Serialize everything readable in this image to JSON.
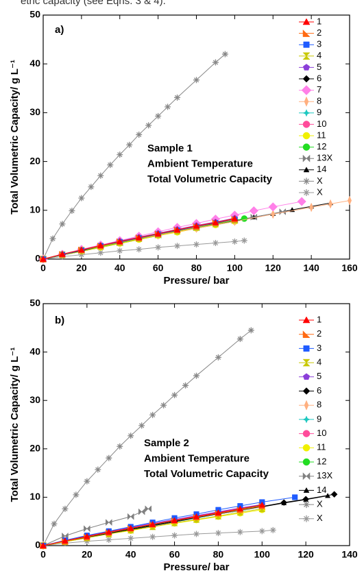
{
  "caption": "etric capacity (see Eqns. 3 & 4).",
  "chart_data": [
    {
      "type": "line",
      "panel_label": "a)",
      "annotations": [
        "Sample 1",
        "Ambient Temperature",
        "Total Volumetric Capacity"
      ],
      "xlabel": "Pressure/ bar",
      "ylabel": "Total Volumetric Capacity/ g L⁻¹",
      "xlim": [
        0,
        160
      ],
      "ylim": [
        0,
        50
      ],
      "xticks": [
        0,
        20,
        40,
        60,
        80,
        100,
        120,
        140,
        160
      ],
      "yticks": [
        0,
        10,
        20,
        30,
        40,
        50
      ],
      "series": [
        {
          "name": "1",
          "color": "#ff0000",
          "marker": "triangle",
          "x": [
            0,
            10,
            20,
            30,
            40,
            50,
            60,
            70,
            80,
            90,
            100
          ],
          "values": [
            0,
            1.0,
            1.9,
            2.8,
            3.6,
            4.4,
            5.2,
            6.0,
            6.8,
            7.5,
            8.3
          ]
        },
        {
          "name": "2",
          "color": "#ff6a13",
          "marker": "halftri",
          "x": [
            0,
            10,
            20,
            30,
            40,
            50,
            60,
            70,
            80,
            90,
            100
          ],
          "values": [
            0,
            1.0,
            1.9,
            2.7,
            3.6,
            4.4,
            5.2,
            6.0,
            6.7,
            7.5,
            8.2
          ]
        },
        {
          "name": "3",
          "color": "#1f5bff",
          "marker": "square",
          "x": [
            0,
            10,
            20,
            30,
            40,
            50,
            60,
            70,
            80,
            90,
            100
          ],
          "values": [
            0,
            0.9,
            1.8,
            2.7,
            3.5,
            4.3,
            5.1,
            5.9,
            6.6,
            7.4,
            8.1
          ]
        },
        {
          "name": "4",
          "color": "#c8c800",
          "marker": "hourglass",
          "x": [
            0,
            10,
            20,
            30,
            40,
            50,
            60,
            70,
            80,
            90,
            100
          ],
          "values": [
            0,
            0.9,
            1.8,
            2.6,
            3.4,
            4.2,
            5.0,
            5.7,
            6.5,
            7.2,
            8.0
          ]
        },
        {
          "name": "5",
          "color": "#8b3fd9",
          "marker": "pentagon",
          "x": [
            0,
            10,
            20,
            30,
            40,
            50,
            60,
            70,
            80,
            90,
            100
          ],
          "values": [
            0,
            1.0,
            1.9,
            2.8,
            3.7,
            4.5,
            5.3,
            6.1,
            6.9,
            7.6,
            8.4
          ]
        },
        {
          "name": "6",
          "color": "#000000",
          "marker": "diamond",
          "x": [
            0,
            10,
            20,
            30,
            40,
            50,
            60,
            70,
            80,
            90,
            100
          ],
          "values": [
            0,
            0.9,
            1.7,
            2.6,
            3.4,
            4.2,
            5.0,
            5.8,
            6.5,
            7.3,
            8.0
          ]
        },
        {
          "name": "7",
          "color": "#ff80e8",
          "marker": "bigdiamond",
          "x": [
            0,
            10,
            20,
            30,
            40,
            50,
            60,
            70,
            80,
            90,
            100,
            110,
            120,
            135
          ],
          "values": [
            0,
            1.0,
            2.0,
            2.9,
            3.8,
            4.7,
            5.6,
            6.5,
            7.3,
            8.2,
            9.0,
            9.9,
            10.7,
            11.8
          ]
        },
        {
          "name": "8",
          "color": "#ffb080",
          "marker": "thindiamond",
          "x": [
            0,
            20,
            40,
            60,
            80,
            100,
            120,
            140,
            150,
            160
          ],
          "values": [
            0,
            1.8,
            3.4,
            4.9,
            6.3,
            7.7,
            9.2,
            10.6,
            11.3,
            12.0
          ]
        },
        {
          "name": "9",
          "color": "#1ec8c0",
          "marker": "star",
          "x": [
            0,
            10,
            20,
            30,
            40,
            50,
            60,
            70,
            80,
            90,
            100
          ],
          "values": [
            0,
            0.9,
            1.8,
            2.7,
            3.5,
            4.3,
            5.1,
            5.9,
            6.6,
            7.4,
            8.1
          ]
        },
        {
          "name": "10",
          "color": "#ff4c9b",
          "marker": "circle",
          "x": [
            0,
            10,
            20,
            30,
            40,
            50,
            60,
            70,
            80,
            90,
            100
          ],
          "values": [
            0,
            1.0,
            1.9,
            2.8,
            3.6,
            4.4,
            5.2,
            6.0,
            6.7,
            7.5,
            8.2
          ]
        },
        {
          "name": "11",
          "color": "#f0f000",
          "marker": "circle",
          "x": [
            0,
            10,
            20,
            30,
            40,
            50,
            60,
            70,
            80,
            90,
            100
          ],
          "values": [
            0,
            0.8,
            1.6,
            2.4,
            3.2,
            4.0,
            4.8,
            5.5,
            6.3,
            7.0,
            7.7
          ]
        },
        {
          "name": "12",
          "color": "#22dd22",
          "marker": "circle",
          "x": [
            0,
            10,
            20,
            30,
            40,
            50,
            60,
            70,
            80,
            90,
            100,
            105
          ],
          "values": [
            0,
            0.8,
            1.7,
            2.5,
            3.3,
            4.1,
            4.9,
            5.7,
            6.4,
            7.2,
            7.9,
            8.3
          ]
        },
        {
          "name": "13X",
          "color": "#808080",
          "marker": "bowtie",
          "x": [
            0,
            20,
            40,
            60,
            80,
            100,
            110,
            125
          ],
          "values": [
            0,
            1.7,
            3.3,
            4.9,
            6.4,
            7.9,
            8.6,
            9.7
          ]
        },
        {
          "name": "14",
          "color": "#000000",
          "marker": "smalltri",
          "x": [
            0,
            20,
            40,
            60,
            80,
            100,
            110,
            120,
            130,
            140,
            150
          ],
          "values": [
            0,
            1.6,
            3.2,
            4.8,
            6.3,
            7.8,
            8.6,
            9.3,
            10.1,
            10.8,
            11.5
          ]
        },
        {
          "name": "X",
          "color": "#888888",
          "marker": "asterisk",
          "x": [
            0,
            5,
            10,
            15,
            20,
            25,
            30,
            35,
            40,
            45,
            50,
            55,
            60,
            65,
            70,
            80,
            90,
            95
          ],
          "values": [
            0,
            4.2,
            7.2,
            9.9,
            12.5,
            14.8,
            17.1,
            19.3,
            21.4,
            23.4,
            25.5,
            27.4,
            29.3,
            31.2,
            33.1,
            36.7,
            40.3,
            42.0
          ]
        },
        {
          "name": "X",
          "color": "#999999",
          "marker": "asterisk",
          "x": [
            0,
            10,
            20,
            30,
            40,
            50,
            60,
            70,
            80,
            90,
            100,
            105
          ],
          "values": [
            0,
            0.5,
            0.9,
            1.3,
            1.7,
            2.0,
            2.4,
            2.7,
            3.0,
            3.3,
            3.6,
            3.8
          ]
        }
      ]
    },
    {
      "type": "line",
      "panel_label": "b)",
      "annotations": [
        "Sample 2",
        "Ambient Temperature",
        "Total Volumetric Capacity"
      ],
      "xlabel": "Pressure/ bar",
      "ylabel": "Total Volumetric Capacity/ g L⁻¹",
      "xlim": [
        0,
        140
      ],
      "ylim": [
        0,
        50
      ],
      "xticks": [
        0,
        20,
        40,
        60,
        80,
        100,
        120,
        140
      ],
      "yticks": [
        0,
        10,
        20,
        30,
        40,
        50
      ],
      "series": [
        {
          "name": "1",
          "color": "#ff0000",
          "marker": "triangle",
          "x": [
            0,
            10,
            20,
            30,
            40,
            50,
            60,
            70,
            80,
            90,
            100
          ],
          "values": [
            0,
            1.0,
            1.9,
            2.8,
            3.6,
            4.4,
            5.2,
            6.0,
            6.8,
            7.6,
            8.4
          ]
        },
        {
          "name": "2",
          "color": "#ff6a13",
          "marker": "halftri",
          "x": [
            0,
            10,
            20,
            30,
            40,
            50,
            60,
            70,
            80,
            90,
            100
          ],
          "values": [
            0,
            0.9,
            1.8,
            2.7,
            3.6,
            4.4,
            5.2,
            5.9,
            6.7,
            7.4,
            8.2
          ]
        },
        {
          "name": "3",
          "color": "#1f5bff",
          "marker": "square",
          "x": [
            0,
            10,
            20,
            30,
            40,
            50,
            60,
            70,
            80,
            90,
            100,
            115
          ],
          "values": [
            0,
            1.1,
            2.1,
            3.0,
            3.9,
            4.8,
            5.7,
            6.5,
            7.4,
            8.2,
            9.0,
            10.0
          ]
        },
        {
          "name": "4",
          "color": "#c8c800",
          "marker": "hourglass",
          "x": [
            0,
            10,
            20,
            30,
            40,
            50,
            60,
            70,
            80,
            90,
            100
          ],
          "values": [
            0,
            0.8,
            1.6,
            2.4,
            3.2,
            3.9,
            4.7,
            5.4,
            6.1,
            6.9,
            7.6
          ]
        },
        {
          "name": "5",
          "color": "#8b3fd9",
          "marker": "pentagon",
          "x": [
            0,
            10,
            20,
            30,
            40,
            50,
            60,
            70,
            80,
            90,
            100
          ],
          "values": [
            0,
            1.0,
            2.0,
            2.9,
            3.8,
            4.6,
            5.4,
            6.2,
            7.0,
            7.8,
            8.5
          ]
        },
        {
          "name": "6",
          "color": "#000000",
          "marker": "diamond",
          "x": [
            0,
            20,
            40,
            60,
            80,
            100,
            110,
            120,
            133
          ],
          "values": [
            0,
            1.7,
            3.4,
            5.0,
            6.6,
            8.1,
            8.9,
            9.6,
            10.6
          ]
        },
        {
          "name": "8",
          "color": "#ffb080",
          "marker": "thindiamond",
          "x": [
            0,
            10,
            20,
            30,
            40,
            50,
            60,
            70,
            80,
            90,
            100
          ],
          "values": [
            0,
            0.9,
            1.7,
            2.6,
            3.4,
            4.2,
            5.0,
            5.8,
            6.5,
            7.3,
            8.0
          ]
        },
        {
          "name": "9",
          "color": "#1ec8c0",
          "marker": "star",
          "x": [
            0,
            10,
            20,
            30,
            40,
            50,
            60,
            70,
            80,
            90,
            100
          ],
          "values": [
            0,
            0.9,
            1.8,
            2.6,
            3.4,
            4.2,
            5.0,
            5.7,
            6.5,
            7.2,
            8.0
          ]
        },
        {
          "name": "10",
          "color": "#ff4c9b",
          "marker": "circle",
          "x": [
            0,
            10,
            20,
            30,
            40,
            50,
            60,
            70,
            80,
            90,
            100
          ],
          "values": [
            0,
            1.0,
            1.9,
            2.8,
            3.7,
            4.5,
            5.3,
            6.1,
            6.9,
            7.7,
            8.4
          ]
        },
        {
          "name": "11",
          "color": "#f0f000",
          "marker": "circle",
          "x": [
            0,
            10,
            20,
            30,
            40,
            50,
            60,
            70,
            80,
            90,
            100
          ],
          "values": [
            0,
            0.8,
            1.6,
            2.4,
            3.1,
            3.9,
            4.6,
            5.3,
            6.0,
            6.7,
            7.4
          ]
        },
        {
          "name": "12",
          "color": "#22dd22",
          "marker": "circle",
          "x": [
            0,
            10,
            20,
            30,
            40,
            50,
            60,
            70,
            80,
            90,
            100
          ],
          "values": [
            0,
            0.9,
            1.8,
            2.7,
            3.5,
            4.3,
            5.1,
            5.9,
            6.7,
            7.5,
            8.3
          ]
        },
        {
          "name": "13X",
          "color": "#808080",
          "marker": "bowtie",
          "x": [
            0,
            10,
            20,
            30,
            40,
            45,
            48
          ],
          "values": [
            0,
            2.0,
            3.5,
            4.8,
            6.0,
            7.0,
            7.6
          ]
        },
        {
          "name": "14",
          "color": "#000000",
          "marker": "smalltri",
          "x": [
            0,
            20,
            40,
            60,
            80,
            100,
            110,
            120,
            130
          ],
          "values": [
            0,
            1.7,
            3.3,
            4.9,
            6.5,
            8.0,
            8.8,
            9.5,
            10.3
          ]
        },
        {
          "name": "X",
          "color": "#888888",
          "marker": "asterisk",
          "x": [
            0,
            5,
            10,
            15,
            20,
            25,
            30,
            35,
            40,
            45,
            50,
            55,
            60,
            65,
            70,
            80,
            90,
            95
          ],
          "values": [
            0,
            4.5,
            7.6,
            10.5,
            13.3,
            15.7,
            18.1,
            20.5,
            22.7,
            24.8,
            27.0,
            29.0,
            31.1,
            33.1,
            35.1,
            38.9,
            42.7,
            44.5
          ]
        },
        {
          "name": "X",
          "color": "#999999",
          "marker": "asterisk",
          "x": [
            0,
            10,
            20,
            30,
            40,
            50,
            60,
            70,
            80,
            90,
            100,
            105
          ],
          "values": [
            0,
            0.5,
            0.9,
            1.2,
            1.5,
            1.8,
            2.1,
            2.4,
            2.6,
            2.8,
            3.0,
            3.2
          ]
        }
      ]
    }
  ]
}
